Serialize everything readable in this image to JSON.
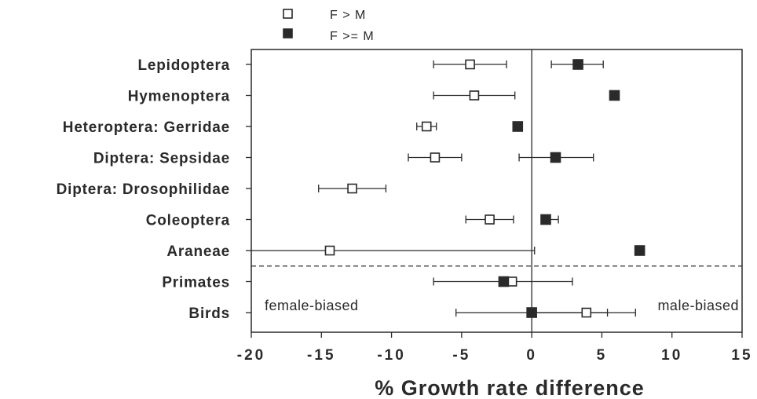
{
  "chart_data": {
    "type": "scatter",
    "title": "",
    "xlabel": "% Growth rate difference",
    "ylabel": "",
    "xlim": [
      -20,
      15
    ],
    "xticks": [
      "-20",
      "-15",
      "-10",
      "-5",
      "0",
      "5",
      "10",
      "15"
    ],
    "xtick_values": [
      -20,
      -15,
      -10,
      -5,
      0,
      5,
      10,
      15
    ],
    "categories": [
      "Lepidoptera",
      "Hymenoptera",
      "Heteroptera: Gerridae",
      "Diptera: Sepsidae",
      "Diptera: Drosophilidae",
      "Coleoptera",
      "Araneae",
      "Primates",
      "Birds"
    ],
    "grid": false,
    "legend_position": "top-left",
    "series": [
      {
        "name": "F > M",
        "marker": "open-square",
        "color": "#2a2a2a",
        "points": [
          {
            "category": "Lepidoptera",
            "x": -4.4,
            "err_low": -7.0,
            "err_high": -1.8
          },
          {
            "category": "Hymenoptera",
            "x": -4.1,
            "err_low": -7.0,
            "err_high": -1.2
          },
          {
            "category": "Heteroptera: Gerridae",
            "x": -7.5,
            "err_low": -8.2,
            "err_high": -6.8
          },
          {
            "category": "Diptera: Sepsidae",
            "x": -6.9,
            "err_low": -8.8,
            "err_high": -5.0
          },
          {
            "category": "Diptera: Drosophilidae",
            "x": -12.8,
            "err_low": -15.2,
            "err_high": -10.4
          },
          {
            "category": "Coleoptera",
            "x": -3.0,
            "err_low": -4.7,
            "err_high": -1.3
          },
          {
            "category": "Araneae",
            "x": -14.4,
            "err_low": -20.0,
            "err_high": 0.2
          },
          {
            "category": "Primates",
            "x": -1.4,
            "err_low": -7.0,
            "err_high": 2.9
          },
          {
            "category": "Birds",
            "x": 3.9,
            "err_low": 0.0,
            "err_high": 7.4
          }
        ]
      },
      {
        "name": "F >= M",
        "marker": "filled-square",
        "color": "#2a2a2a",
        "points": [
          {
            "category": "Lepidoptera",
            "x": 3.3,
            "err_low": 1.4,
            "err_high": 5.1
          },
          {
            "category": "Hymenoptera",
            "x": 5.9,
            "err_low": null,
            "err_high": null
          },
          {
            "category": "Heteroptera: Gerridae",
            "x": -1.0,
            "err_low": null,
            "err_high": null
          },
          {
            "category": "Diptera: Sepsidae",
            "x": 1.7,
            "err_low": -0.9,
            "err_high": 4.4
          },
          {
            "category": "Diptera: Drosophilidae",
            "x": null,
            "err_low": null,
            "err_high": null
          },
          {
            "category": "Coleoptera",
            "x": 1.0,
            "err_low": null,
            "err_high": 1.9
          },
          {
            "category": "Araneae",
            "x": 7.7,
            "err_low": null,
            "err_high": null
          },
          {
            "category": "Primates",
            "x": -2.0,
            "err_low": null,
            "err_high": null
          },
          {
            "category": "Birds",
            "x": 0.0,
            "err_low": -5.4,
            "err_high": 5.4
          }
        ]
      }
    ],
    "separator_after": "Araneae",
    "annotations": [
      "female-biased",
      "male-biased"
    ]
  }
}
